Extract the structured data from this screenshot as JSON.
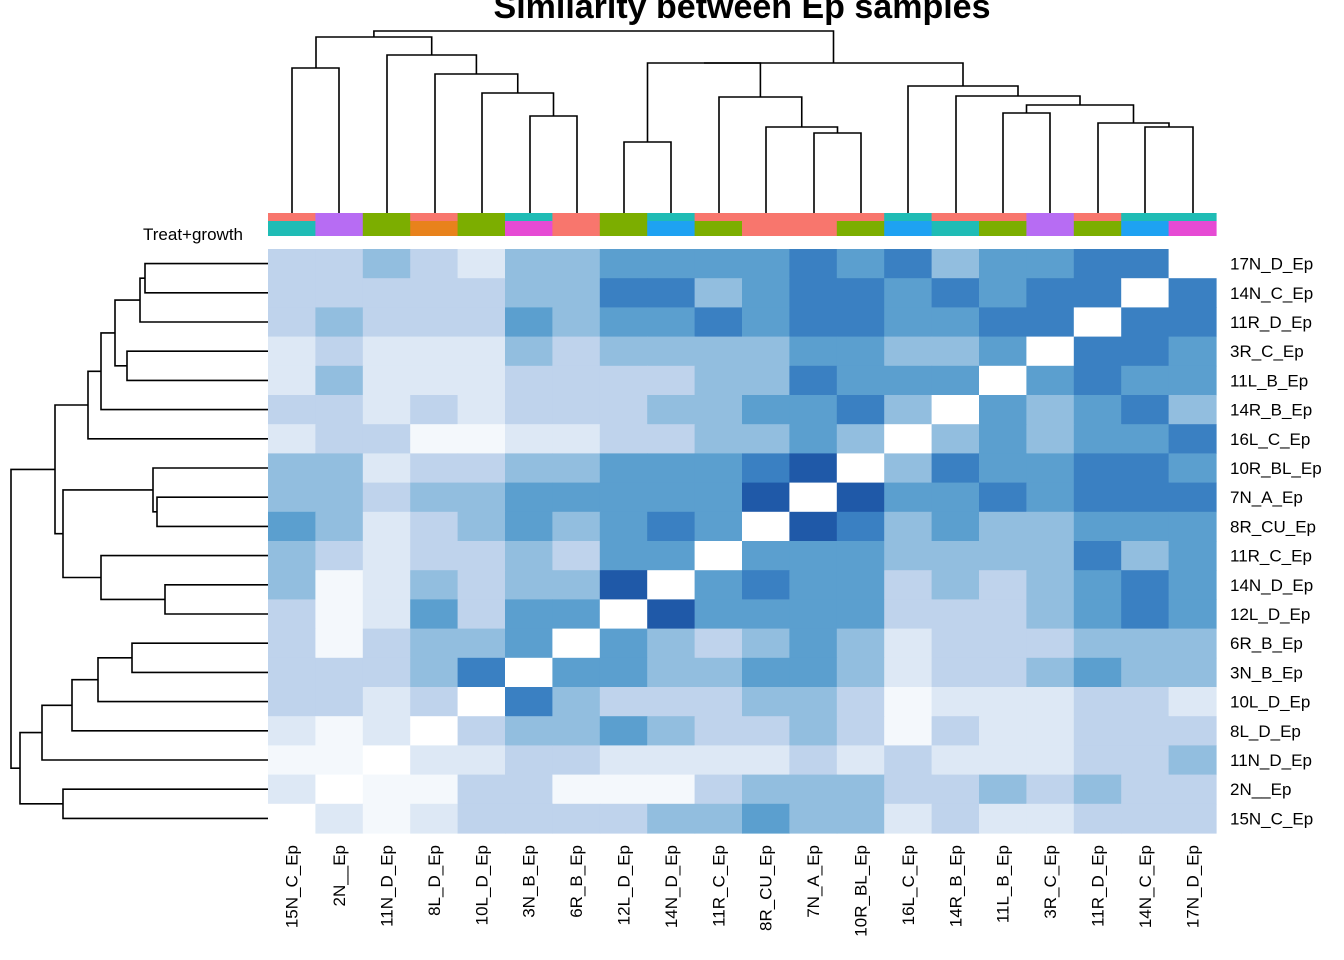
{
  "chart_data": {
    "type": "heatmap",
    "title": "Similarity between Ep samples",
    "annotation_label": "Treat+growth",
    "columns": [
      "15N_C_Ep",
      "2N__Ep",
      "11N_D_Ep",
      "8L_D_Ep",
      "10L_D_Ep",
      "3N_B_Ep",
      "6R_B_Ep",
      "12L_D_Ep",
      "14N_D_Ep",
      "11R_C_Ep",
      "8R_CU_Ep",
      "7N_A_Ep",
      "10R_BL_Ep",
      "16L_C_Ep",
      "14R_B_Ep",
      "11L_B_Ep",
      "3R_C_Ep",
      "11R_D_Ep",
      "14N_C_Ep",
      "17N_D_Ep"
    ],
    "rows": [
      "17N_D_Ep",
      "14N_C_Ep",
      "11R_D_Ep",
      "3R_C_Ep",
      "11L_B_Ep",
      "14R_B_Ep",
      "16L_C_Ep",
      "10R_BL_Ep",
      "7N_A_Ep",
      "8R_CU_Ep",
      "11R_C_Ep",
      "14N_D_Ep",
      "12L_D_Ep",
      "6R_B_Ep",
      "3N_B_Ep",
      "10L_D_Ep",
      "8L_D_Ep",
      "11N_D_Ep",
      "2N__Ep",
      "15N_C_Ep"
    ],
    "color_scale": [
      "#ffffff",
      "#f4f8fc",
      "#dde8f5",
      "#bfd3ec",
      "#92bedf",
      "#5b9fcf",
      "#3a80c2",
      "#1f59a8"
    ],
    "values": [
      [
        3,
        3,
        4,
        3,
        2,
        4,
        4,
        5,
        5,
        5,
        5,
        6,
        5,
        6,
        4,
        5,
        5,
        6,
        6,
        0
      ],
      [
        3,
        3,
        3,
        3,
        3,
        4,
        4,
        6,
        6,
        4,
        5,
        6,
        6,
        5,
        6,
        5,
        6,
        6,
        0,
        6
      ],
      [
        3,
        4,
        3,
        3,
        3,
        5,
        4,
        5,
        5,
        6,
        5,
        6,
        6,
        5,
        5,
        6,
        6,
        0,
        6,
        6
      ],
      [
        2,
        3,
        2,
        2,
        2,
        4,
        3,
        4,
        4,
        4,
        4,
        5,
        5,
        4,
        4,
        5,
        0,
        6,
        6,
        5
      ],
      [
        2,
        4,
        2,
        2,
        2,
        3,
        3,
        3,
        3,
        4,
        4,
        6,
        5,
        5,
        5,
        0,
        5,
        6,
        5,
        5
      ],
      [
        3,
        3,
        2,
        3,
        2,
        3,
        3,
        3,
        4,
        4,
        5,
        5,
        6,
        4,
        0,
        5,
        4,
        5,
        6,
        4
      ],
      [
        2,
        3,
        3,
        1,
        1,
        2,
        2,
        3,
        3,
        4,
        4,
        5,
        4,
        0,
        4,
        5,
        4,
        5,
        5,
        6
      ],
      [
        4,
        4,
        2,
        3,
        3,
        4,
        4,
        5,
        5,
        5,
        6,
        7,
        0,
        4,
        6,
        5,
        5,
        6,
        6,
        5
      ],
      [
        4,
        4,
        3,
        4,
        4,
        5,
        5,
        5,
        5,
        5,
        7,
        0,
        7,
        5,
        5,
        6,
        5,
        6,
        6,
        6
      ],
      [
        5,
        4,
        2,
        3,
        4,
        5,
        4,
        5,
        6,
        5,
        0,
        7,
        6,
        4,
        5,
        4,
        4,
        5,
        5,
        5
      ],
      [
        4,
        3,
        2,
        3,
        3,
        4,
        3,
        5,
        5,
        0,
        5,
        5,
        5,
        4,
        4,
        4,
        4,
        6,
        4,
        5
      ],
      [
        4,
        1,
        2,
        4,
        3,
        4,
        4,
        7,
        0,
        5,
        6,
        5,
        5,
        3,
        4,
        3,
        4,
        5,
        6,
        5
      ],
      [
        3,
        1,
        2,
        5,
        3,
        5,
        5,
        0,
        7,
        5,
        5,
        5,
        5,
        3,
        3,
        3,
        4,
        5,
        6,
        5
      ],
      [
        3,
        1,
        3,
        4,
        4,
        5,
        0,
        5,
        4,
        3,
        4,
        5,
        4,
        2,
        3,
        3,
        3,
        4,
        4,
        4
      ],
      [
        3,
        3,
        3,
        4,
        6,
        0,
        5,
        5,
        4,
        4,
        5,
        5,
        4,
        2,
        3,
        3,
        4,
        5,
        4,
        4
      ],
      [
        3,
        3,
        2,
        3,
        0,
        6,
        4,
        3,
        3,
        3,
        4,
        4,
        3,
        1,
        2,
        2,
        2,
        3,
        3,
        2
      ],
      [
        2,
        1,
        2,
        0,
        3,
        4,
        4,
        5,
        4,
        3,
        3,
        4,
        3,
        1,
        3,
        2,
        2,
        3,
        3,
        3
      ],
      [
        1,
        1,
        0,
        2,
        2,
        3,
        3,
        2,
        2,
        2,
        2,
        3,
        2,
        3,
        2,
        2,
        2,
        3,
        3,
        4
      ],
      [
        2,
        0,
        1,
        1,
        3,
        3,
        1,
        1,
        1,
        3,
        4,
        4,
        4,
        3,
        3,
        4,
        3,
        4,
        3,
        3
      ],
      [
        0,
        2,
        1,
        2,
        3,
        3,
        3,
        3,
        4,
        4,
        5,
        4,
        4,
        2,
        3,
        2,
        2,
        3,
        3,
        3
      ]
    ],
    "annotation_colors": {
      "top": [
        "#f8766d",
        "#b76cf3",
        "#7cae00",
        "#f8766d",
        "#7cae00",
        "#1fbcb5",
        "#f8766d",
        "#7cae00",
        "#1fbcb5",
        "#f8766d",
        "#f8766d",
        "#f8766d",
        "#f8766d",
        "#1fbcb5",
        "#f8766d",
        "#f8766d",
        "#b76cf3",
        "#f8766d",
        "#1fbcb5",
        "#1fbcb5"
      ],
      "bottom": [
        "#1fbcb5",
        "#b76cf3",
        "#7cae00",
        "#e8821c",
        "#7cae00",
        "#e64bd4",
        "#f8766d",
        "#7cae00",
        "#1ea2f2",
        "#7cae00",
        "#f8766d",
        "#f8766d",
        "#7cae00",
        "#1ea2f2",
        "#1fbcb5",
        "#7cae00",
        "#b76cf3",
        "#7cae00",
        "#1ea2f2",
        "#e64bd4"
      ]
    },
    "grid": false,
    "legend": "none"
  }
}
